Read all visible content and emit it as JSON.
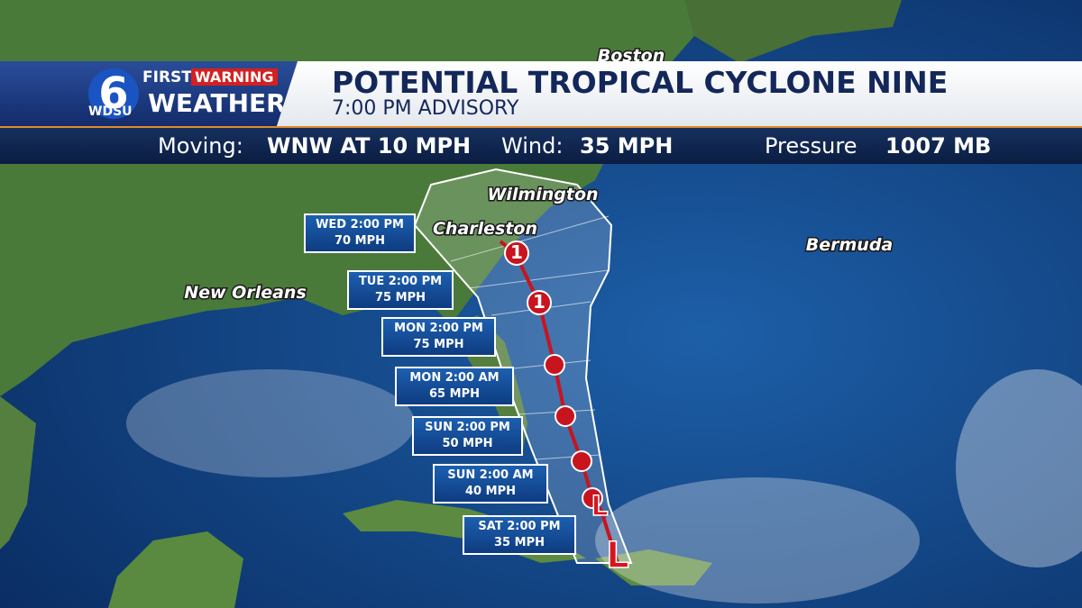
{
  "header": {
    "logo": {
      "number": "6",
      "first": "FIRST",
      "warning": "WARNING",
      "weather": "WEATHER",
      "station": "WDSU"
    },
    "title": "POTENTIAL TROPICAL CYCLONE NINE",
    "subtitle": "7:00 PM ADVISORY"
  },
  "info": [
    {
      "label": "Moving:",
      "value": "WNW AT 10 MPH"
    },
    {
      "label": "Wind:",
      "value": "35 MPH"
    },
    {
      "label": "Pressure",
      "value": "1007 MB"
    }
  ],
  "places": [
    "Boston",
    "Wilmington",
    "Charleston",
    "Bermuda",
    "New Orleans"
  ],
  "forecast": [
    {
      "time": "WED 2:00 PM",
      "wind": "70 MPH"
    },
    {
      "time": "TUE 2:00 PM",
      "wind": "75 MPH"
    },
    {
      "time": "MON 2:00 PM",
      "wind": "75 MPH"
    },
    {
      "time": "MON 2:00 AM",
      "wind": "65 MPH"
    },
    {
      "time": "SUN 2:00 PM",
      "wind": "50 MPH"
    },
    {
      "time": "SUN 2:00 AM",
      "wind": "40 MPH"
    },
    {
      "time": "SAT 2:00 PM",
      "wind": "35 MPH"
    }
  ],
  "track_markers": [
    "L",
    "L",
    "1",
    "1"
  ]
}
